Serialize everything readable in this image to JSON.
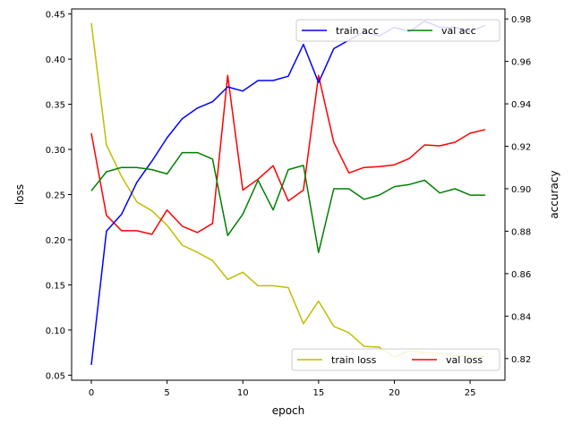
{
  "chart_data": {
    "type": "line",
    "xlabel": "epoch",
    "ylabel_left": "loss",
    "ylabel_right": "accuracy",
    "xlim": [
      -1.3,
      27.3
    ],
    "xticks": [
      0,
      5,
      10,
      15,
      20,
      25
    ],
    "ylim_left": [
      0.0444,
      0.4556
    ],
    "yticks_left": [
      "0.05",
      "0.10",
      "0.15",
      "0.20",
      "0.25",
      "0.30",
      "0.35",
      "0.40",
      "0.45"
    ],
    "ylim_right": [
      0.8098,
      0.9847
    ],
    "yticks_right": [
      "0.82",
      "0.84",
      "0.86",
      "0.88",
      "0.90",
      "0.92",
      "0.94",
      "0.96",
      "0.98"
    ],
    "x": [
      0,
      1,
      2,
      3,
      4,
      5,
      6,
      7,
      8,
      9,
      10,
      11,
      12,
      13,
      14,
      15,
      16,
      17,
      18,
      19,
      20,
      21,
      22,
      23,
      24,
      25,
      26
    ],
    "series_left": [
      {
        "name": "train loss",
        "color": "#bfbf00",
        "values": [
          0.44,
          0.305,
          0.27,
          0.242,
          0.232,
          0.216,
          0.194,
          0.186,
          0.177,
          0.156,
          0.164,
          0.149,
          0.149,
          0.147,
          0.107,
          0.132,
          0.104,
          0.097,
          0.082,
          0.081,
          0.07,
          0.077,
          0.075,
          0.074,
          0.072,
          0.071,
          0.071
        ]
      },
      {
        "name": "val loss",
        "color": "#ff0000",
        "values": [
          0.318,
          0.227,
          0.21,
          0.21,
          0.206,
          0.233,
          0.215,
          0.208,
          0.218,
          0.382,
          0.255,
          0.267,
          0.282,
          0.243,
          0.255,
          0.382,
          0.308,
          0.274,
          0.28,
          0.281,
          0.283,
          0.29,
          0.305,
          0.304,
          0.308,
          0.318,
          0.322
        ]
      }
    ],
    "series_right": [
      {
        "name": "train acc",
        "color": "#0000ff",
        "values": [
          0.817,
          0.88,
          0.888,
          0.903,
          0.913,
          0.924,
          0.933,
          0.938,
          0.941,
          0.948,
          0.946,
          0.951,
          0.951,
          0.953,
          0.968,
          0.95,
          0.966,
          0.97,
          0.974,
          0.972,
          0.976,
          0.974,
          0.979,
          0.976,
          0.976,
          0.974,
          0.977
        ]
      },
      {
        "name": "val acc",
        "color": "#008000",
        "values": [
          0.899,
          0.908,
          0.91,
          0.91,
          0.909,
          0.907,
          0.917,
          0.917,
          0.914,
          0.878,
          0.888,
          0.904,
          0.89,
          0.909,
          0.911,
          0.87,
          0.9,
          0.9,
          0.895,
          0.897,
          0.901,
          0.902,
          0.904,
          0.898,
          0.9,
          0.897,
          0.897
        ]
      }
    ],
    "legend_upper": {
      "placement": "upper right",
      "entries": [
        "train acc",
        "val acc"
      ]
    },
    "legend_lower": {
      "placement": "lower right",
      "entries": [
        "train loss",
        "val loss"
      ]
    }
  }
}
